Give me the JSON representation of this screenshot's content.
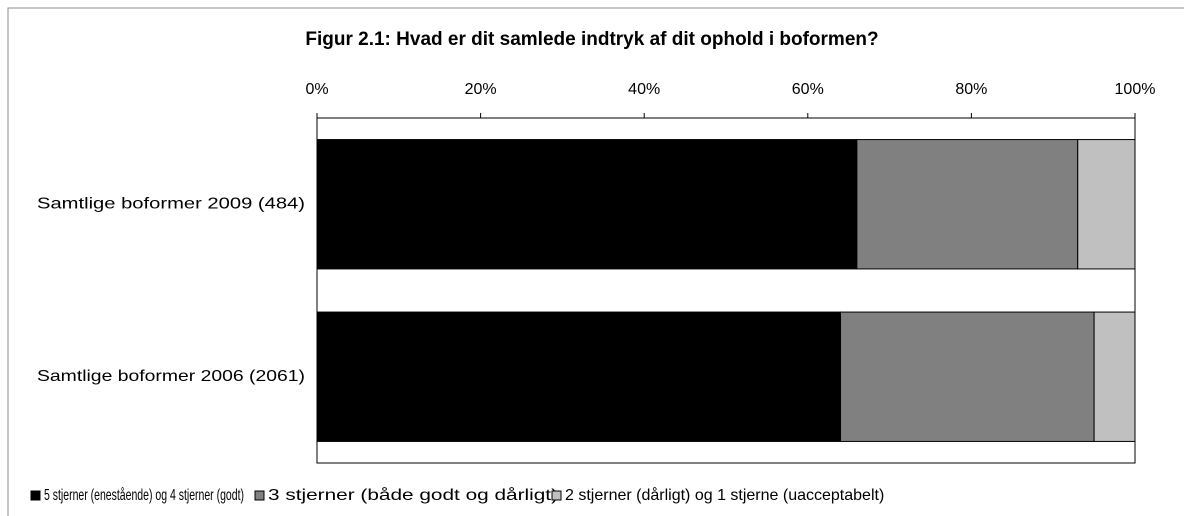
{
  "chart_data": {
    "type": "stacked_barh",
    "title": "Figur 2.1: Hvad er dit samlede indtryk af dit ophold i boformen?",
    "categories": [
      "Samtlige boformer 2009 (484)",
      "Samtlige boformer 2006 (2061)"
    ],
    "series": [
      {
        "name": "5 stjerner (enestående) og 4 stjerner (godt)",
        "color": "#000000",
        "values": [
          66,
          64
        ]
      },
      {
        "name": "3 stjerner (både godt og dårligt)",
        "color": "#808080",
        "values": [
          27,
          31
        ]
      },
      {
        "name": "2 stjerner (dårligt) og 1 stjerne (uacceptabelt)",
        "color": "#c0c0c0",
        "values": [
          7,
          5
        ]
      }
    ],
    "xlim": [
      0,
      100
    ],
    "xticks": [
      {
        "value": 0,
        "label": "0%"
      },
      {
        "value": 20,
        "label": "20%"
      },
      {
        "value": 40,
        "label": "40%"
      },
      {
        "value": 60,
        "label": "60%"
      },
      {
        "value": 80,
        "label": "80%"
      },
      {
        "value": 100,
        "label": "100%"
      }
    ],
    "legend": "bottom"
  }
}
